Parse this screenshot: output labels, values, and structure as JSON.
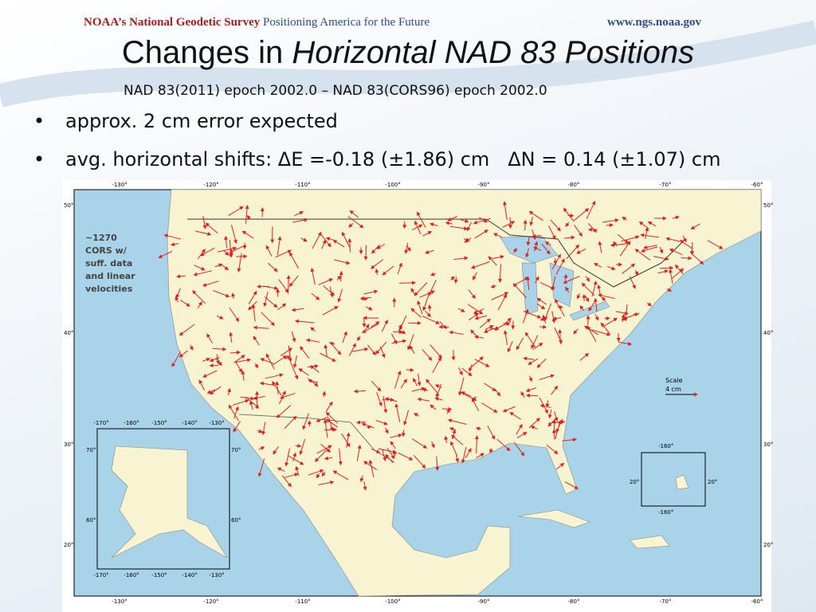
{
  "header": {
    "org_prefix": "NOAA’s",
    "org_name": "National Geodetic Survey",
    "tagline": "Positioning America for the Future",
    "url": "www.ngs.noaa.gov"
  },
  "title": {
    "plain": "Changes in",
    "italic": "Horizontal NAD 83 Positions"
  },
  "subtitle": "NAD 83(2011) epoch 2002.0 – NAD 83(CORS96) epoch 2002.0",
  "bullets": [
    "approx. 2 cm error expected",
    "avg. horizontal shifts: ΔE =-0.18 (±1.86) cm   ΔN = 0.14 (±1.07) cm"
  ],
  "map": {
    "longitude_labels": [
      "-130°",
      "-120°",
      "-110°",
      "-100°",
      "-90°",
      "-80°",
      "-70°",
      "-60°"
    ],
    "latitude_labels": [
      "50°",
      "40°",
      "30°",
      "20°"
    ],
    "note": [
      "~1270",
      "CORS w/",
      "suff. data",
      "and linear",
      "velocities"
    ],
    "scale": {
      "title": "Scale",
      "length": "4 cm"
    },
    "alaska_inset": {
      "longitude_labels": [
        "-170°",
        "-160°",
        "-150°",
        "-140°",
        "-130°"
      ],
      "latitude_labels": [
        "70°",
        "60°"
      ]
    },
    "hawaii_inset": {
      "longitude_label": "-160°",
      "latitude_label": "20°"
    }
  }
}
